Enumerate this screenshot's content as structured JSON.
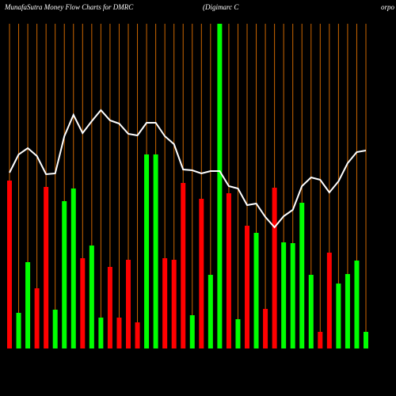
{
  "chart_data": {
    "type": "bar_line",
    "title": "MunafaSutra  Money Flow  Charts for DMRC",
    "subtitle": "(Digimarc C",
    "subtitle_cut": "orpo",
    "categories": [
      null,
      null,
      null,
      null,
      null,
      null,
      null,
      null,
      null,
      null,
      null,
      null,
      null,
      null,
      null,
      null,
      null,
      null,
      null,
      null,
      null,
      null,
      null,
      null,
      null,
      null,
      null,
      null,
      null,
      null,
      null,
      null,
      null,
      null,
      null,
      null,
      null,
      null,
      null,
      null
    ],
    "ylim": [
      0,
      410
    ],
    "bar_values": [
      212,
      45,
      109,
      76,
      204,
      49,
      186,
      202,
      114,
      130,
      39,
      103,
      39,
      112,
      33,
      245,
      245,
      114,
      112,
      209,
      42,
      189,
      93,
      410,
      196,
      37,
      155,
      146,
      50,
      203,
      134,
      133,
      184,
      93,
      21,
      121,
      82,
      94,
      111,
      21
    ],
    "bar_colors": [
      "#ff0000",
      "#00ff00",
      "#00ff00",
      "#ff0000",
      "#ff0000",
      "#00ff00",
      "#00ff00",
      "#00ff00",
      "#ff0000",
      "#00ff00",
      "#00ff00",
      "#ff0000",
      "#ff0000",
      "#ff0000",
      "#ff0000",
      "#00ff00",
      "#00ff00",
      "#ff0000",
      "#ff0000",
      "#ff0000",
      "#00ff00",
      "#ff0000",
      "#00ff00",
      "#00ff00",
      "#ff0000",
      "#00ff00",
      "#ff0000",
      "#00ff00",
      "#ff0000",
      "#ff0000",
      "#00ff00",
      "#00ff00",
      "#00ff00",
      "#00ff00",
      "#ff0000",
      "#ff0000",
      "#00ff00",
      "#00ff00",
      "#00ff00",
      "#00ff00"
    ],
    "line_values": [
      222,
      245,
      253,
      243,
      220,
      221,
      268,
      295,
      272,
      287,
      301,
      288,
      284,
      271,
      269,
      285,
      285,
      268,
      258,
      226,
      225,
      221,
      224,
      224,
      205,
      202,
      181,
      183,
      166,
      153,
      167,
      175,
      205,
      216,
      213,
      197,
      211,
      234,
      248,
      250
    ],
    "line_color": "#ffffff",
    "grid_color": "#cc6600"
  }
}
